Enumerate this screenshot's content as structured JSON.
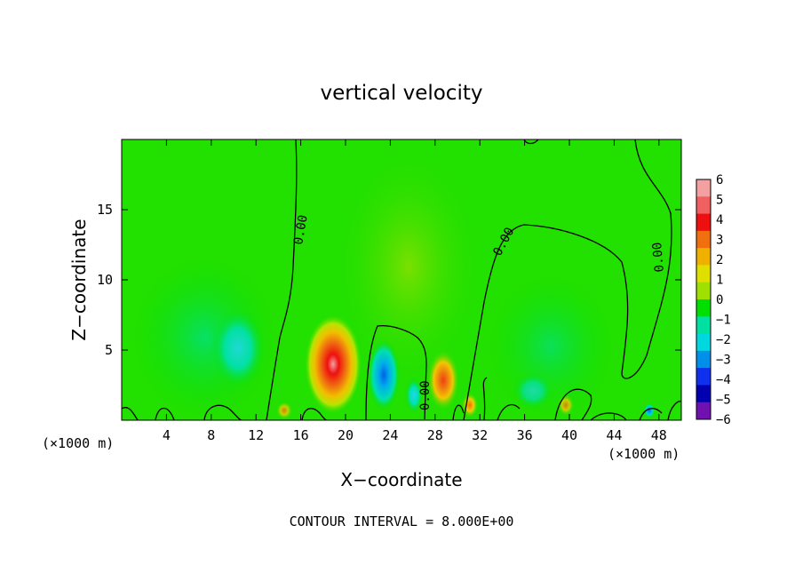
{
  "chart_data": {
    "type": "heatmap",
    "title": "vertical velocity",
    "xlabel": "X−coordinate",
    "ylabel": "Z−coordinate",
    "x_unit_left": "(×1000 m)",
    "x_unit_right": "(×1000 m)",
    "xlim": [
      0,
      50
    ],
    "ylim": [
      0,
      20
    ],
    "x_ticks": [
      4,
      8,
      12,
      16,
      20,
      24,
      28,
      32,
      36,
      40,
      44,
      48
    ],
    "x_tick_labels": [
      "4",
      "8",
      "12",
      "16",
      "20",
      "24",
      "28",
      "32",
      "36",
      "40",
      "44",
      "48"
    ],
    "y_ticks": [
      5,
      10,
      15
    ],
    "y_tick_labels": [
      "5",
      "10",
      "15"
    ],
    "footer": "CONTOUR INTERVAL = 8.000E+00",
    "contour_label": "0.00",
    "colorbar": {
      "levels": [
        6,
        5,
        4,
        3,
        2,
        1,
        0,
        -1,
        -2,
        -3,
        -4,
        -5,
        -6
      ],
      "labels": [
        "6",
        "5",
        "4",
        "3",
        "2",
        "1",
        "0",
        "−1",
        "−2",
        "−3",
        "−4",
        "−5",
        "−6"
      ],
      "colors": [
        "#f4a0a0",
        "#f06060",
        "#ee1010",
        "#f07010",
        "#f0b000",
        "#e0e000",
        "#a0e000",
        "#00e000",
        "#00e0a0",
        "#00d8e0",
        "#0090e8",
        "#1030f0",
        "#0000b0",
        "#7010b0"
      ]
    },
    "features": [
      {
        "name": "updraft",
        "x": 18.9,
        "z": 3.8,
        "w": 5.6
      },
      {
        "name": "updraft",
        "x": 28.8,
        "z": 2.8,
        "w": 3.6
      },
      {
        "name": "updraft",
        "x": 31.0,
        "z": 1.2,
        "w": 2.5
      },
      {
        "name": "downdraft",
        "x": 23.5,
        "z": 3.0,
        "w": -3.2
      },
      {
        "name": "downdraft",
        "x": 10.5,
        "z": 5.0,
        "w": -1.8
      },
      {
        "name": "downdraft",
        "x": 26.0,
        "z": 2.0,
        "w": -1.5
      },
      {
        "name": "downdraft",
        "x": 47.0,
        "z": 0.6,
        "w": -3.0
      }
    ]
  }
}
